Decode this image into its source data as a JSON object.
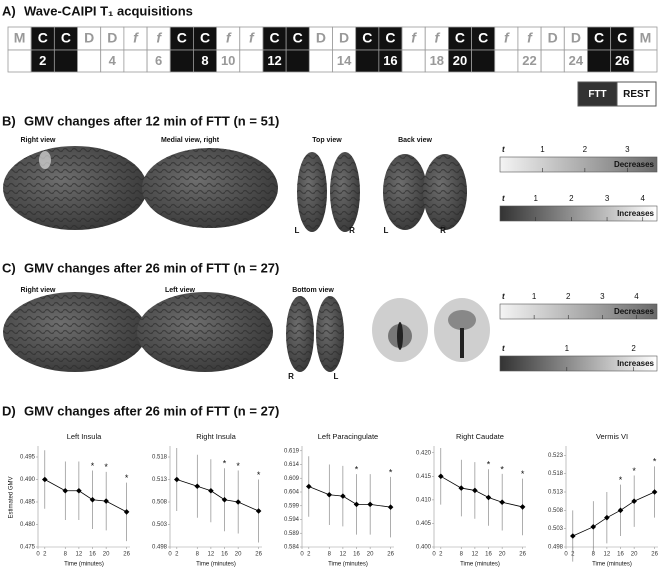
{
  "panel_a": {
    "label": "A)",
    "title": "Wave-CAIPI T₁ acquisitions",
    "top_row": [
      "M",
      "C",
      "C",
      "D",
      "D",
      "f",
      "f",
      "C",
      "C",
      "f",
      "f",
      "C",
      "C",
      "D",
      "D",
      "C",
      "C",
      "f",
      "f",
      "C",
      "C",
      "f",
      "f",
      "D",
      "D",
      "C",
      "C",
      "M"
    ],
    "bottom_row": [
      null,
      "2",
      null,
      null,
      "4",
      null,
      "6",
      null,
      "8",
      "10",
      null,
      "12",
      null,
      null,
      "14",
      null,
      "16",
      null,
      "18",
      "20",
      null,
      null,
      "22",
      null,
      "24",
      null,
      "26",
      null
    ],
    "legend": [
      "FTT",
      "REST"
    ]
  },
  "panel_b": {
    "label": "B)",
    "title": "GMV changes after 12 min of FTT (n = 51)",
    "views": [
      "Right view",
      "Medial view, right",
      "Top view",
      "Back view"
    ],
    "hemisphere_labels": [
      "L",
      "R",
      "L",
      "R"
    ],
    "colorbars": [
      {
        "symbol": "t",
        "label": "Decreases",
        "xlim": [
          0,
          3.7
        ],
        "xticks": [
          1,
          2,
          3
        ]
      },
      {
        "symbol": "t",
        "label": "Increases",
        "xlim": [
          0,
          4.4
        ],
        "xticks": [
          1,
          2,
          3,
          4
        ]
      }
    ]
  },
  "panel_c": {
    "label": "C)",
    "title": "GMV changes after 26 min of FTT (n = 27)",
    "views": [
      "Right view",
      "Left view",
      "Bottom view"
    ],
    "hemisphere_labels": [
      "R",
      "L"
    ],
    "colorbars": [
      {
        "symbol": "t",
        "label": "Decreases",
        "xlim": [
          0,
          4.6
        ],
        "xticks": [
          1,
          2,
          3,
          4
        ]
      },
      {
        "symbol": "t",
        "label": "Increases",
        "xlim": [
          0,
          2.35
        ],
        "xticks": [
          1,
          2
        ]
      }
    ]
  },
  "panel_d": {
    "label": "D)",
    "title": "GMV changes after 26 min of FTT (n = 27)"
  },
  "chart_data": [
    {
      "type": "line",
      "title": "Left Insula",
      "ylabel": "Estimated GMV",
      "xlabel": "Time (minutes)",
      "x": [
        2,
        8,
        12,
        16,
        20,
        26
      ],
      "xlim": [
        0,
        27
      ],
      "xticks": [
        0,
        2,
        8,
        12,
        16,
        20,
        26
      ],
      "ylim": [
        0.475,
        0.497
      ],
      "yticks": [
        0.475,
        {
          "value": 0.48,
          "label": "0.480"
        },
        0.485,
        {
          "value": 0.49,
          "label": "0.490"
        },
        0.495
      ],
      "series": [
        {
          "color": "#000000",
          "values": [
            0.49,
            0.4875,
            0.4875,
            0.4855,
            0.4852,
            0.4828
          ],
          "errors": [
            0.0065,
            0.0065,
            0.0065,
            0.0065,
            0.0065,
            0.0065
          ]
        }
      ],
      "annotations": [
        null,
        null,
        null,
        "*",
        "*",
        "*"
      ]
    },
    {
      "type": "line",
      "title": "Right Insula",
      "xlabel": "Time (minutes)",
      "x": [
        2,
        8,
        12,
        16,
        20,
        26
      ],
      "xlim": [
        0,
        27
      ],
      "xticks": [
        0,
        2,
        8,
        12,
        16,
        20,
        26
      ],
      "ylim": [
        0.498,
        0.52
      ],
      "yticks": [
        0.498,
        0.503,
        0.508,
        0.513,
        0.518
      ],
      "series": [
        {
          "color": "#000000",
          "values": [
            0.513,
            0.5115,
            0.5105,
            0.5085,
            0.508,
            0.506
          ],
          "errors": [
            0.007,
            0.007,
            0.007,
            0.007,
            0.007,
            0.007
          ]
        }
      ],
      "annotations": [
        null,
        null,
        null,
        "*",
        "*",
        "*"
      ]
    },
    {
      "type": "line",
      "title": "Left Paracingulate",
      "xlabel": "Time (minutes)",
      "x": [
        2,
        8,
        12,
        16,
        20,
        26
      ],
      "xlim": [
        0,
        27
      ],
      "xticks": [
        0,
        2,
        8,
        12,
        16,
        20,
        26
      ],
      "ylim": [
        0.584,
        0.62
      ],
      "yticks": [
        0.584,
        0.589,
        0.594,
        0.599,
        0.604,
        0.609,
        0.614,
        0.619
      ],
      "series": [
        {
          "color": "#000000",
          "values": [
            0.606,
            0.603,
            0.6025,
            0.5995,
            0.5995,
            0.5985
          ],
          "errors": [
            0.011,
            0.011,
            0.011,
            0.011,
            0.011,
            0.011
          ]
        }
      ],
      "annotations": [
        null,
        null,
        null,
        "*",
        null,
        "*"
      ]
    },
    {
      "type": "line",
      "title": "Right Caudate",
      "xlabel": "Time (minutes)",
      "x": [
        2,
        8,
        12,
        16,
        20,
        26
      ],
      "xlim": [
        0,
        27
      ],
      "xticks": [
        0,
        2,
        8,
        12,
        16,
        20,
        26
      ],
      "ylim": [
        0.4,
        0.421
      ],
      "yticks": [
        {
          "value": 0.4,
          "label": "0.400"
        },
        0.405,
        {
          "value": 0.41,
          "label": "0.410"
        },
        0.415,
        {
          "value": 0.42,
          "label": "0.420"
        }
      ],
      "series": [
        {
          "color": "#000000",
          "values": [
            0.415,
            0.4125,
            0.412,
            0.4105,
            0.4095,
            0.4085
          ],
          "errors": [
            0.006,
            0.006,
            0.006,
            0.006,
            0.006,
            0.006
          ]
        }
      ],
      "annotations": [
        null,
        null,
        null,
        "*",
        "*",
        "*"
      ]
    },
    {
      "type": "line",
      "title": "Vermis VI",
      "xlabel": "Time (minutes)",
      "x": [
        2,
        8,
        12,
        16,
        20,
        26
      ],
      "xlim": [
        0,
        27
      ],
      "xticks": [
        0,
        2,
        8,
        12,
        16,
        20,
        26
      ],
      "ylim": [
        0.498,
        0.525
      ],
      "yticks": [
        0.498,
        0.503,
        0.508,
        0.513,
        0.518,
        0.523
      ],
      "series": [
        {
          "color": "#000000",
          "values": [
            0.501,
            0.5035,
            0.506,
            0.508,
            0.5105,
            0.513
          ],
          "errors": [
            0.007,
            0.007,
            0.007,
            0.007,
            0.007,
            0.007
          ]
        }
      ],
      "annotations": [
        null,
        null,
        null,
        "*",
        "*",
        "*"
      ]
    }
  ]
}
